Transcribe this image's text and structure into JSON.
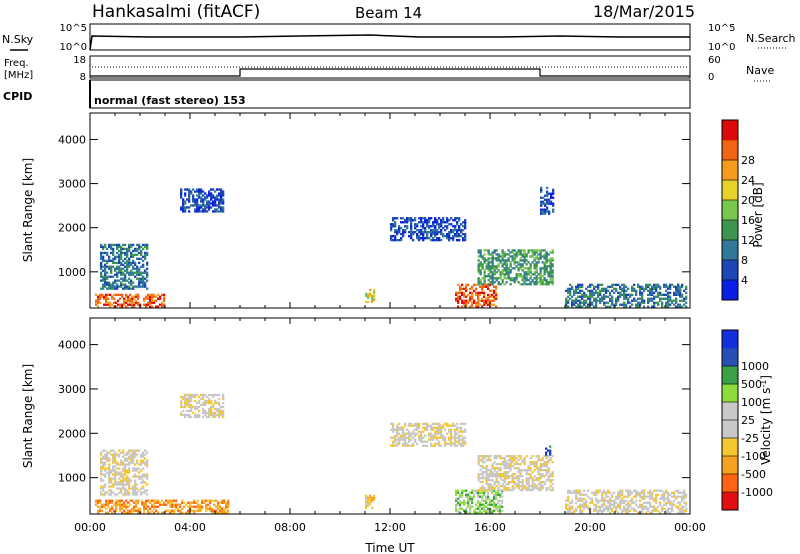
{
  "header": {
    "station": "Hankasalmi (fitACF)",
    "beam": "Beam 14",
    "date": "18/Mar/2015"
  },
  "top_panels": {
    "noise": {
      "left_label": "N.Sky",
      "right_label": "N.Search",
      "left_ticks": [
        "10^5",
        "10^0"
      ],
      "right_ticks": [
        "10^5",
        "10^0"
      ]
    },
    "freq": {
      "left_label_line1": "Freq.",
      "left_label_line2": "[MHz]",
      "left_ticks": [
        "18",
        "8"
      ],
      "right_label": "Nave",
      "right_ticks": [
        "60",
        "0"
      ]
    },
    "cpid": {
      "label": "CPID",
      "text": "normal (fast stereo) 153"
    }
  },
  "colors": {
    "power": [
      "#0a1ee6",
      "#1e46b4",
      "#32789a",
      "#3c9650",
      "#78c850",
      "#e6d228",
      "#f59b1e",
      "#f06414",
      "#dc0a0a"
    ],
    "velocity": [
      "#e01010",
      "#ff6414",
      "#f5a01e",
      "#f5c832",
      "#c8c8c8",
      "#c8c8c8",
      "#8cdc3c",
      "#3ca046",
      "#2850b4",
      "#1430dc"
    ]
  },
  "colorbars": {
    "power": {
      "title": "Power [dB]",
      "ticks": [
        "4",
        "8",
        "12",
        "16",
        "20",
        "24",
        "28"
      ]
    },
    "velocity": {
      "title": "Velocity [m s",
      "title_sup": "-1",
      "title_end": "]",
      "ticks": [
        "-1000",
        "-500",
        "-100",
        "-25",
        "25",
        "100",
        "500",
        "1000"
      ]
    }
  },
  "chart_data": [
    {
      "type": "heatmap",
      "quantity": "power",
      "xlabel": "",
      "ylabel": "Slant Range [km]",
      "ylim": [
        180,
        4600
      ],
      "xlim_hours": [
        0,
        24
      ],
      "yticks": [
        "1000",
        "2000",
        "3000",
        "4000"
      ],
      "echo_regions": [
        {
          "t0": 0.4,
          "t1": 2.3,
          "r0": 600,
          "r1": 1600,
          "level": 2
        },
        {
          "t0": 0.2,
          "t1": 3.0,
          "r0": 190,
          "r1": 500,
          "level": 7
        },
        {
          "t0": 3.6,
          "t1": 5.3,
          "r0": 2350,
          "r1": 2850,
          "level": 1
        },
        {
          "t0": 11.0,
          "t1": 11.4,
          "r0": 300,
          "r1": 600,
          "level": 5
        },
        {
          "t0": 12.0,
          "t1": 15.0,
          "r0": 1700,
          "r1": 2200,
          "level": 1
        },
        {
          "t0": 14.6,
          "t1": 16.2,
          "r0": 190,
          "r1": 700,
          "level": 7
        },
        {
          "t0": 15.5,
          "t1": 18.5,
          "r0": 700,
          "r1": 1500,
          "level": 3
        },
        {
          "t0": 18.0,
          "t1": 18.5,
          "r0": 2300,
          "r1": 2900,
          "level": 1
        },
        {
          "t0": 19.0,
          "t1": 23.8,
          "r0": 190,
          "r1": 700,
          "level": 2
        }
      ]
    },
    {
      "type": "heatmap",
      "quantity": "velocity",
      "xlabel": "Time UT",
      "ylabel": "Slant Range [km]",
      "ylim": [
        180,
        4600
      ],
      "xlim_hours": [
        0,
        24
      ],
      "xticks": [
        "00:00",
        "04:00",
        "08:00",
        "12:00",
        "16:00",
        "20:00",
        "00:00"
      ],
      "yticks": [
        "1000",
        "2000",
        "3000",
        "4000"
      ],
      "echo_regions": [
        {
          "t0": 0.4,
          "t1": 2.3,
          "r0": 600,
          "r1": 1600,
          "level": 4
        },
        {
          "t0": 0.2,
          "t1": 5.5,
          "r0": 190,
          "r1": 500,
          "level": 2
        },
        {
          "t0": 3.6,
          "t1": 5.3,
          "r0": 2350,
          "r1": 2850,
          "level": 4
        },
        {
          "t0": 11.0,
          "t1": 11.4,
          "r0": 300,
          "r1": 600,
          "level": 3
        },
        {
          "t0": 12.0,
          "t1": 15.0,
          "r0": 1700,
          "r1": 2200,
          "level": 4
        },
        {
          "t0": 14.6,
          "t1": 16.5,
          "r0": 190,
          "r1": 700,
          "level": 6
        },
        {
          "t0": 15.5,
          "t1": 18.5,
          "r0": 700,
          "r1": 1500,
          "level": 4
        },
        {
          "t0": 18.2,
          "t1": 18.4,
          "r0": 1500,
          "r1": 1700,
          "level": 8
        },
        {
          "t0": 19.0,
          "t1": 23.8,
          "r0": 190,
          "r1": 700,
          "level": 4
        }
      ]
    }
  ]
}
